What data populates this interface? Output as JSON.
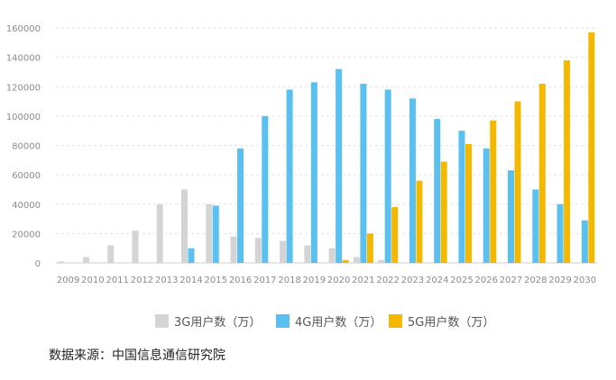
{
  "chart_data": {
    "type": "bar",
    "title": "",
    "xlabel": "",
    "ylabel": "",
    "ylim": [
      0,
      160000
    ],
    "yticks": [
      0,
      20000,
      40000,
      60000,
      80000,
      100000,
      120000,
      140000,
      160000
    ],
    "grid": true,
    "legend_position": "bottom",
    "categories": [
      "2009",
      "2010",
      "2011",
      "2012",
      "2013",
      "2014",
      "2015",
      "2016",
      "2017",
      "2018",
      "2019",
      "2020",
      "2021",
      "2022",
      "2023",
      "2024",
      "2025",
      "2026",
      "2027",
      "2028",
      "2029",
      "2030"
    ],
    "series": [
      {
        "name": "3G用户数（万）",
        "color": "#d4d4d4",
        "values": [
          1000,
          4000,
          12000,
          22000,
          40000,
          50000,
          40000,
          18000,
          17000,
          15000,
          12000,
          10000,
          4000,
          2000,
          null,
          null,
          null,
          null,
          null,
          null,
          null,
          null
        ]
      },
      {
        "name": "4G用户数（万）",
        "color": "#5ac0ef",
        "values": [
          null,
          null,
          null,
          null,
          null,
          10000,
          39000,
          78000,
          100000,
          118000,
          123000,
          132000,
          122000,
          118000,
          112000,
          98000,
          90000,
          78000,
          63000,
          50000,
          40000,
          29000
        ]
      },
      {
        "name": "5G用户数（万）",
        "color": "#f5b800",
        "values": [
          null,
          null,
          null,
          null,
          null,
          null,
          null,
          null,
          null,
          null,
          null,
          2000,
          20000,
          38000,
          56000,
          69000,
          81000,
          97000,
          110000,
          122000,
          138000,
          157000
        ]
      }
    ]
  },
  "source_text": "数据来源：中国信息通信研究院"
}
